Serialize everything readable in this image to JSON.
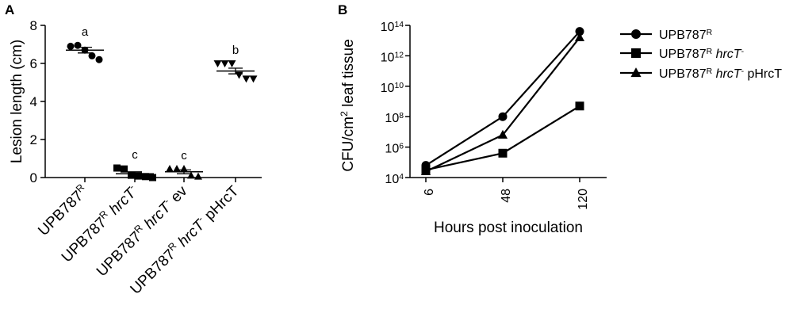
{
  "chart_data": [
    {
      "panel": "A",
      "type": "scatter",
      "ylabel": "Lesion length (cm)",
      "ylim": [
        0,
        8
      ],
      "yticks": [
        "0",
        "2",
        "4",
        "6",
        "8"
      ],
      "groups": [
        {
          "label_parts": [
            {
              "t": "UPB787"
            },
            {
              "t": "R",
              "sup": true
            }
          ],
          "marker": "circle",
          "letter": "a",
          "points": [
            6.9,
            6.95,
            6.7,
            6.4,
            6.2
          ],
          "mean": 6.7,
          "sem": 0.15
        },
        {
          "label_parts": [
            {
              "t": "UPB787"
            },
            {
              "t": "R",
              "sup": true
            },
            {
              "t": " "
            },
            {
              "t": "hrcT",
              "italic": true
            },
            {
              "t": "-",
              "sup": true
            }
          ],
          "marker": "square",
          "letter": "c",
          "points": [
            0.5,
            0.45,
            0.12,
            0.08,
            0.05,
            0.0
          ],
          "mean": 0.2,
          "sem": 0.1
        },
        {
          "label_parts": [
            {
              "t": "UPB787"
            },
            {
              "t": "R",
              "sup": true
            },
            {
              "t": " "
            },
            {
              "t": "hrcT",
              "italic": true
            },
            {
              "t": "-",
              "sup": true
            },
            {
              "t": " ev"
            }
          ],
          "marker": "triangle-up",
          "letter": "c",
          "points": [
            0.45,
            0.45,
            0.45,
            0.1,
            0.05
          ],
          "mean": 0.3,
          "sem": 0.1
        },
        {
          "label_parts": [
            {
              "t": "UPB787"
            },
            {
              "t": "R",
              "sup": true
            },
            {
              "t": " "
            },
            {
              "t": "hrcT",
              "italic": true
            },
            {
              "t": "-",
              "sup": true
            },
            {
              "t": " pHrcT"
            }
          ],
          "marker": "triangle-down",
          "letter": "b",
          "points": [
            6.0,
            6.0,
            6.0,
            5.4,
            5.2,
            5.2
          ],
          "mean": 5.6,
          "sem": 0.15
        }
      ]
    },
    {
      "panel": "B",
      "type": "line",
      "xlabel": "Hours post inoculation",
      "ylabel_parts": [
        {
          "t": "CFU/cm"
        },
        {
          "t": "2",
          "sup": true
        },
        {
          "t": " leaf tissue"
        }
      ],
      "yscale": "log",
      "ylim": [
        4,
        14
      ],
      "ytick_exponents": [
        4,
        6,
        8,
        10,
        12,
        14
      ],
      "ytick_base": "10",
      "x": [
        "6",
        "48",
        "120"
      ],
      "series": [
        {
          "label_parts": [
            {
              "t": "UPB787"
            },
            {
              "t": "R",
              "sup": true
            }
          ],
          "marker": "circle",
          "log10_values": [
            4.8,
            8.0,
            13.6
          ]
        },
        {
          "label_parts": [
            {
              "t": "UPB787"
            },
            {
              "t": "R",
              "sup": true
            },
            {
              "t": " "
            },
            {
              "t": "hrcT",
              "italic": true
            },
            {
              "t": "-",
              "sup": true
            }
          ],
          "marker": "square",
          "log10_values": [
            4.5,
            5.6,
            8.7
          ]
        },
        {
          "label_parts": [
            {
              "t": "UPB787"
            },
            {
              "t": "R",
              "sup": true
            },
            {
              "t": " "
            },
            {
              "t": "hrcT",
              "italic": true
            },
            {
              "t": "-",
              "sup": true
            },
            {
              "t": " pHrcT"
            }
          ],
          "marker": "triangle-up",
          "log10_values": [
            4.4,
            6.8,
            13.2
          ]
        }
      ],
      "legend": "right"
    }
  ]
}
